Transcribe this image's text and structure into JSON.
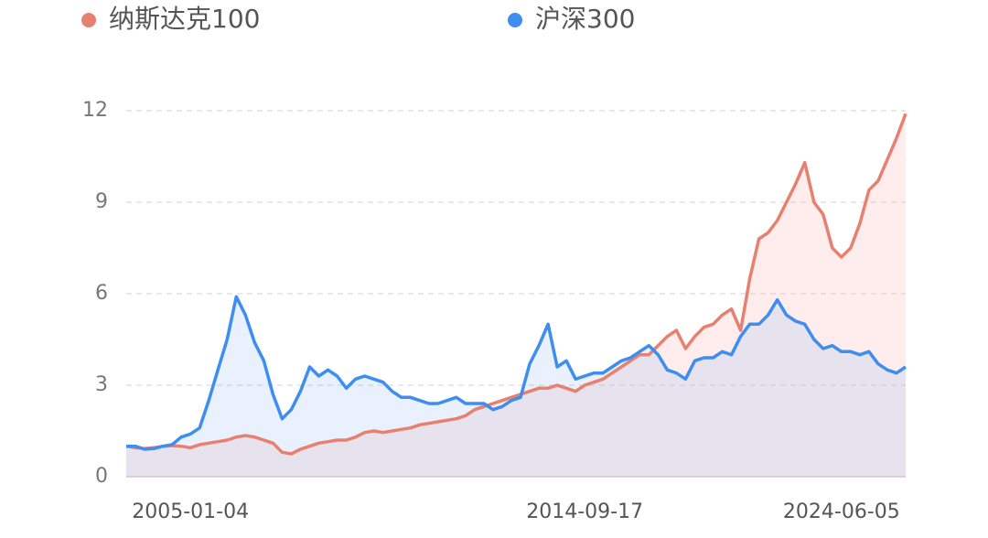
{
  "chart_data": {
    "type": "line",
    "categories": [
      null,
      null,
      null,
      null,
      null,
      null,
      null,
      "2005-01-04",
      null,
      null,
      null,
      null,
      null,
      null,
      null,
      null,
      null,
      null,
      null,
      null,
      null,
      null,
      null,
      null,
      null,
      null,
      null,
      null,
      null,
      null,
      null,
      null,
      null,
      null,
      null,
      null,
      null,
      null,
      null,
      null,
      null,
      null,
      null,
      null,
      null,
      null,
      null,
      null,
      null,
      null,
      "2014-09-17",
      null,
      null,
      null,
      null,
      null,
      null,
      null,
      null,
      null,
      null,
      null,
      null,
      null,
      null,
      null,
      null,
      null,
      null,
      null,
      null,
      null,
      null,
      null,
      null,
      null,
      null,
      null,
      "2024-06-05",
      null,
      null,
      null,
      null,
      null,
      null,
      null
    ],
    "series": [
      {
        "name": "纳斯达克100",
        "color": "#e8806f",
        "values": [
          1.0,
          0.95,
          0.92,
          0.95,
          1.0,
          1.02,
          1.0,
          0.95,
          1.05,
          1.1,
          1.15,
          1.2,
          1.3,
          1.35,
          1.3,
          1.2,
          1.1,
          0.8,
          0.75,
          0.9,
          1.0,
          1.1,
          1.15,
          1.2,
          1.2,
          1.3,
          1.45,
          1.5,
          1.45,
          1.5,
          1.55,
          1.6,
          1.7,
          1.75,
          1.8,
          1.85,
          1.9,
          2.0,
          2.2,
          2.3,
          2.4,
          2.5,
          2.6,
          2.7,
          2.8,
          2.9,
          2.9,
          3.0,
          2.9,
          2.8,
          3.0,
          3.1,
          3.2,
          3.4,
          3.6,
          3.8,
          4.0,
          4.0,
          4.3,
          4.6,
          4.8,
          4.2,
          4.6,
          4.9,
          5.0,
          5.3,
          5.5,
          4.8,
          6.5,
          7.8,
          8.0,
          8.4,
          9.0,
          9.6,
          10.3,
          9.0,
          8.6,
          7.5,
          7.2,
          7.5,
          8.3,
          9.4,
          9.7,
          10.4,
          11.1,
          11.9
        ]
      },
      {
        "name": "沪深300",
        "color": "#3d8ef0",
        "values": [
          1.0,
          1.0,
          0.9,
          0.92,
          1.0,
          1.05,
          1.3,
          1.4,
          1.6,
          2.5,
          3.5,
          4.5,
          5.9,
          5.3,
          4.4,
          3.8,
          2.7,
          1.9,
          2.2,
          2.8,
          3.6,
          3.3,
          3.5,
          3.3,
          2.9,
          3.2,
          3.3,
          3.2,
          3.1,
          2.8,
          2.6,
          2.6,
          2.5,
          2.4,
          2.4,
          2.5,
          2.6,
          2.4,
          2.4,
          2.4,
          2.2,
          2.3,
          2.5,
          2.6,
          3.7,
          4.3,
          5.0,
          3.6,
          3.8,
          3.2,
          3.3,
          3.4,
          3.4,
          3.6,
          3.8,
          3.9,
          4.1,
          4.3,
          4.0,
          3.5,
          3.4,
          3.2,
          3.8,
          3.9,
          3.9,
          4.1,
          4.0,
          4.6,
          5.0,
          5.0,
          5.3,
          5.8,
          5.3,
          5.1,
          5.0,
          4.5,
          4.2,
          4.3,
          4.1,
          4.1,
          4.0,
          4.1,
          3.7,
          3.5,
          3.4,
          3.6
        ]
      }
    ],
    "ylim": [
      0,
      12
    ],
    "yticks": [
      0,
      3,
      6,
      9,
      12
    ],
    "grid": true,
    "area": true,
    "legend": "top"
  }
}
